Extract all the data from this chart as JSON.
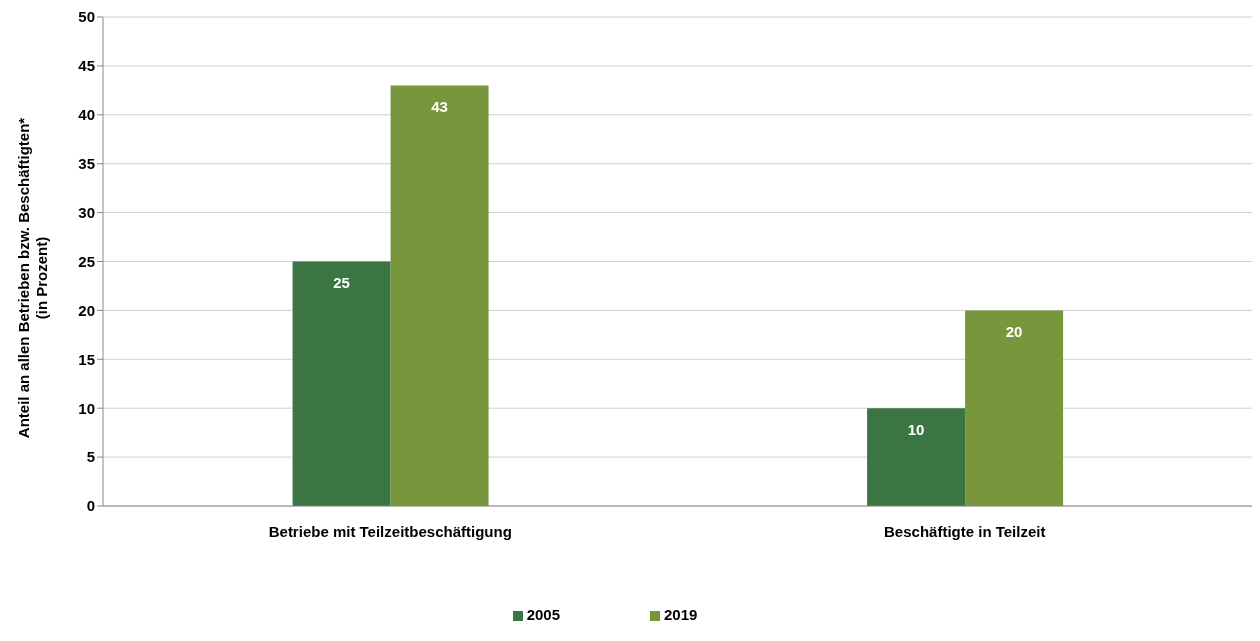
{
  "chart_data": {
    "type": "bar",
    "ylabel": "Anteil an allen Betrieben bzw. Beschäftigten*\n(in Prozent)",
    "categories": [
      "Betriebe mit Teilzeitbeschäftigung",
      "Beschäftigte in Teilzeit"
    ],
    "series": [
      {
        "name": "2005",
        "color": "#3a7543",
        "values": [
          25,
          10
        ]
      },
      {
        "name": "2019",
        "color": "#78963c",
        "values": [
          43,
          20
        ]
      }
    ],
    "ylim": [
      0,
      50
    ],
    "yticks": [
      0,
      5,
      10,
      15,
      20,
      25,
      30,
      35,
      40,
      45,
      50
    ],
    "grid": "y",
    "legend": "bottom",
    "data_labels": true
  }
}
